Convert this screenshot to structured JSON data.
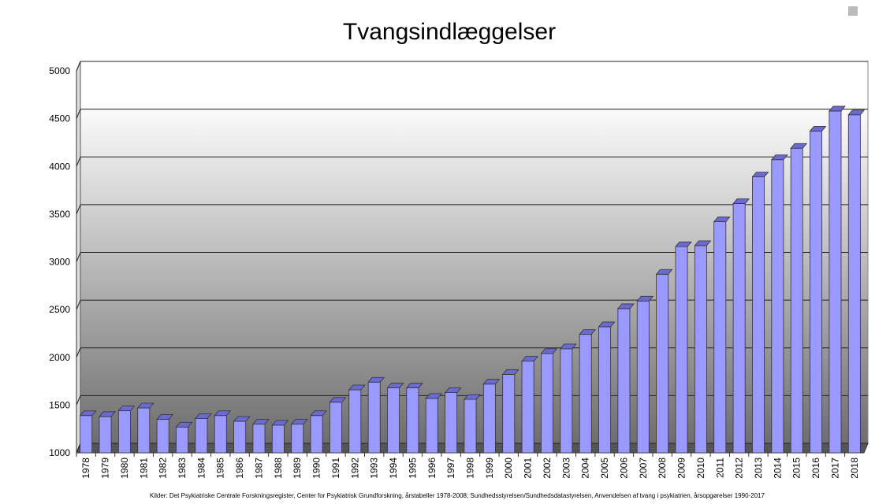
{
  "chart_data": {
    "type": "bar",
    "title": "Tvangsindlæggelser",
    "source": "Kilder: Det Psykiatriske Centrale Forskningsregister, Center for Psykiatrisk Grundforskning, årstabeller 1978-2008; Sundhedsstyrelsen/Sundhedsdatastyrelsen, Anvendelsen af tvang i psykiatrien, årsopgørelser 1990-2017",
    "categories": [
      "1978",
      "1979",
      "1980",
      "1981",
      "1982",
      "1983",
      "1984",
      "1985",
      "1986",
      "1987",
      "1988",
      "1989",
      "1990",
      "1991",
      "1992",
      "1993",
      "1994",
      "1995",
      "1996",
      "1997",
      "1998",
      "1999",
      "2000",
      "2001",
      "2002",
      "2003",
      "2004",
      "2005",
      "2006",
      "2007",
      "2008",
      "2009",
      "2010",
      "2011",
      "2012",
      "2013",
      "2014",
      "2015",
      "2016",
      "2017",
      "2018"
    ],
    "values": [
      1390,
      1380,
      1440,
      1470,
      1350,
      1270,
      1360,
      1390,
      1330,
      1300,
      1290,
      1300,
      1390,
      1530,
      1660,
      1740,
      1680,
      1680,
      1570,
      1630,
      1560,
      1720,
      1820,
      1960,
      2040,
      2090,
      2240,
      2320,
      2510,
      2590,
      2870,
      3160,
      3170,
      3420,
      3610,
      3890,
      4070,
      4190,
      4370,
      4580,
      4540
    ],
    "color": "#9999ff",
    "ylim": [
      1000,
      5000
    ],
    "yticks": [
      1000,
      1500,
      2000,
      2500,
      3000,
      3500,
      4000,
      4500,
      5000
    ],
    "grid": true
  }
}
